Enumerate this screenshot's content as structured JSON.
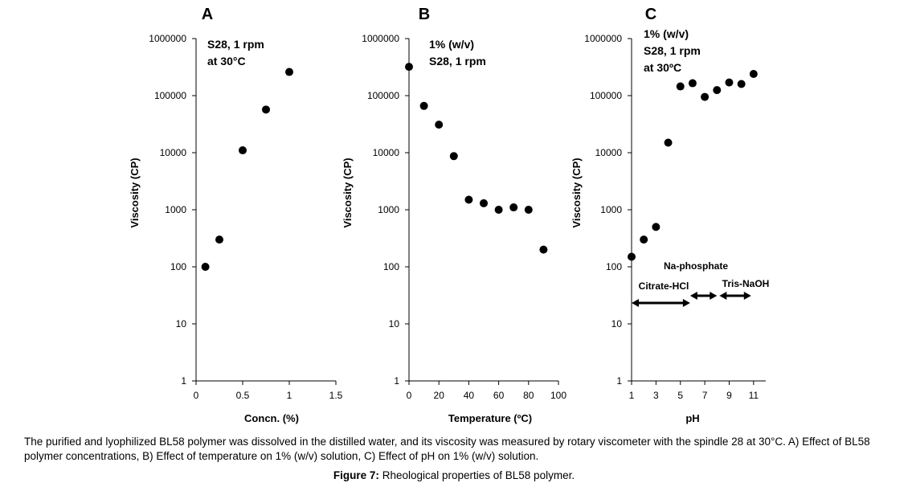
{
  "chart_data": [
    {
      "panel": "A",
      "type": "scatter",
      "xlabel": "Concn. (%)",
      "ylabel": "Viscosity (CP)",
      "yscale": "log",
      "xlim": [
        0,
        1.5
      ],
      "ylim": [
        1,
        1000000
      ],
      "xticks": [
        "0",
        "0.5",
        "1",
        "1.5"
      ],
      "xtick_values": [
        0,
        0.5,
        1,
        1.5
      ],
      "yticks": [
        "1",
        "10",
        "100",
        "1000",
        "10000",
        "100000",
        "1000000"
      ],
      "yaxis_labels": true,
      "annotations": [
        "S28, 1 rpm",
        "at 30°C"
      ],
      "points": [
        {
          "x": 0.1,
          "y": 100
        },
        {
          "x": 0.25,
          "y": 300
        },
        {
          "x": 0.5,
          "y": 11000
        },
        {
          "x": 0.75,
          "y": 57000
        },
        {
          "x": 1.0,
          "y": 260000
        }
      ]
    },
    {
      "panel": "B",
      "type": "scatter",
      "xlabel": "Temperature (ºC)",
      "ylabel": "Viscosity (CP)",
      "yscale": "log",
      "xlim": [
        0,
        100
      ],
      "ylim": [
        1,
        1000000
      ],
      "xticks": [
        "0",
        "20",
        "40",
        "60",
        "80",
        "100"
      ],
      "xtick_values": [
        0,
        20,
        40,
        60,
        80,
        100
      ],
      "yticks": [
        "1",
        "10",
        "100",
        "1000",
        "10000",
        "100000",
        "1000000"
      ],
      "annotations": [
        "1% (w/v)",
        "S28, 1 rpm"
      ],
      "points": [
        {
          "x": 0,
          "y": 320000
        },
        {
          "x": 10,
          "y": 66000
        },
        {
          "x": 20,
          "y": 31000
        },
        {
          "x": 30,
          "y": 8700
        },
        {
          "x": 40,
          "y": 1500
        },
        {
          "x": 50,
          "y": 1300
        },
        {
          "x": 60,
          "y": 1000
        },
        {
          "x": 70,
          "y": 1100
        },
        {
          "x": 80,
          "y": 1000
        },
        {
          "x": 90,
          "y": 200
        }
      ]
    },
    {
      "panel": "C",
      "type": "scatter",
      "xlabel": "pH",
      "ylabel": "Viscosity (CP)",
      "yscale": "log",
      "xlim": [
        1,
        12
      ],
      "ylim": [
        1,
        1000000
      ],
      "xticks": [
        "1",
        "3",
        "5",
        "7",
        "9",
        "11"
      ],
      "xtick_values": [
        1,
        3,
        5,
        7,
        9,
        11
      ],
      "yticks": [
        "1",
        "10",
        "100",
        "1000",
        "10000",
        "100000",
        "1000000"
      ],
      "annotations": [
        "1% (w/v)",
        "S28, 1 rpm",
        "at 30ºC"
      ],
      "points": [
        {
          "x": 1,
          "y": 150
        },
        {
          "x": 2,
          "y": 300
        },
        {
          "x": 3,
          "y": 500
        },
        {
          "x": 4,
          "y": 15000
        },
        {
          "x": 5,
          "y": 145000
        },
        {
          "x": 6,
          "y": 165000
        },
        {
          "x": 7,
          "y": 95000
        },
        {
          "x": 8,
          "y": 125000
        },
        {
          "x": 9,
          "y": 170000
        },
        {
          "x": 10,
          "y": 160000
        },
        {
          "x": 11,
          "y": 240000
        }
      ],
      "buffer_ranges": [
        {
          "label": "Citrate-HCl",
          "x_from": 1,
          "x_to": 5.8
        },
        {
          "label": "Na-phosphate",
          "x_from": 5.8,
          "x_to": 8.0
        },
        {
          "label": "Tris-NaOH",
          "x_from": 8.2,
          "x_to": 10.8
        }
      ]
    }
  ],
  "caption": {
    "body": "The purified and lyophilized BL58 polymer was dissolved in the distilled water, and its viscosity was measured by rotary viscometer with the spindle 28 at 30°C. A) Effect of BL58 polymer concentrations, B) Effect of temperature on 1% (w/v) solution, C) Effect of pH on 1% (w/v) solution.",
    "title_prefix": "Figure 7:",
    "title_text": " Rheological properties of BL58 polymer."
  }
}
